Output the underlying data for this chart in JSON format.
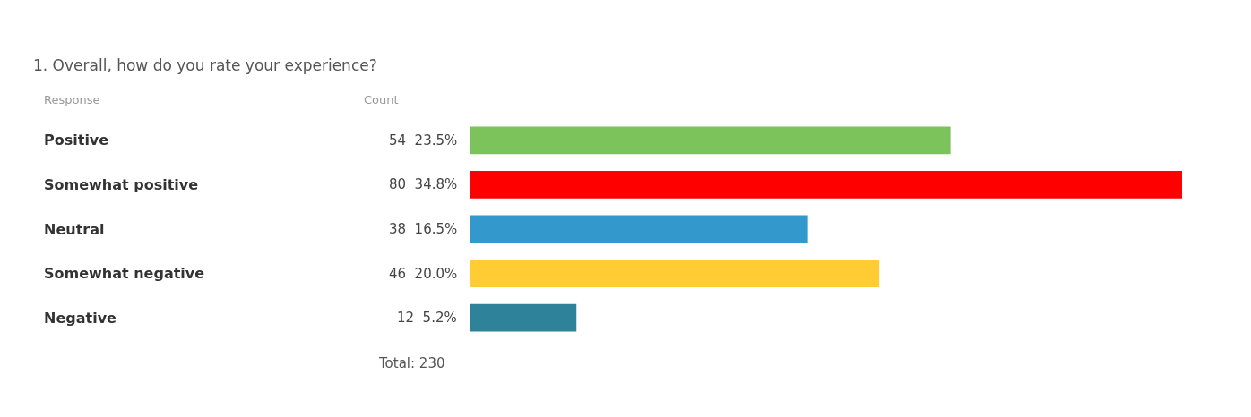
{
  "chart_data": {
    "type": "bar",
    "orientation": "horizontal",
    "title": "1. Overall, how do you rate your experience?",
    "categories": [
      "Positive",
      "Somewhat positive",
      "Neutral",
      "Somewhat negative",
      "Negative"
    ],
    "values": [
      54,
      80,
      38,
      46,
      12
    ],
    "colors": [
      "#7dc35b",
      "#ff0000",
      "#3399cc",
      "#ffcc33",
      "#2e8299"
    ],
    "value_labels": [
      "54  23.5%",
      "80  34.8%",
      "38  16.5%",
      "46  20.0%",
      "12  5.2%"
    ],
    "annotations": [
      "Response",
      "Count",
      "Total: 230"
    ],
    "grid": false,
    "legend": false
  }
}
